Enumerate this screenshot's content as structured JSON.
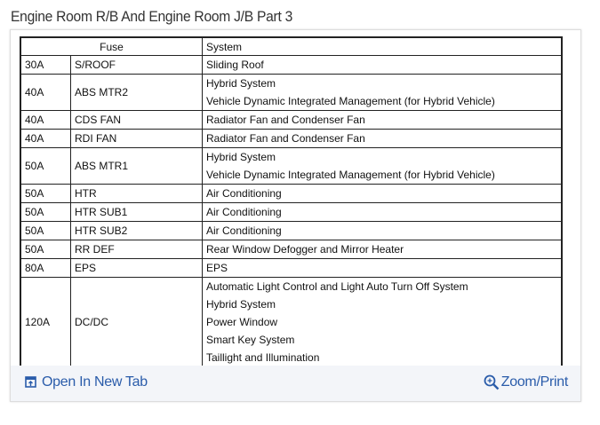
{
  "title": "Engine Room R/B And Engine Room J/B Part 3",
  "table": {
    "headers": {
      "fuse": "Fuse",
      "system": "System"
    },
    "rows": [
      {
        "amp": "30A",
        "name": "S/ROOF",
        "systems": [
          "Sliding Roof"
        ]
      },
      {
        "amp": "40A",
        "name": "ABS MTR2",
        "systems": [
          "Hybrid System",
          "Vehicle Dynamic Integrated Management (for Hybrid Vehicle)"
        ]
      },
      {
        "amp": "40A",
        "name": "CDS FAN",
        "systems": [
          "Radiator Fan and Condenser Fan"
        ]
      },
      {
        "amp": "40A",
        "name": "RDI FAN",
        "systems": [
          "Radiator Fan and Condenser Fan"
        ]
      },
      {
        "amp": "50A",
        "name": "ABS MTR1",
        "systems": [
          "Hybrid System",
          "Vehicle Dynamic Integrated Management (for Hybrid Vehicle)"
        ]
      },
      {
        "amp": "50A",
        "name": "HTR",
        "systems": [
          "Air Conditioning"
        ]
      },
      {
        "amp": "50A",
        "name": "HTR SUB1",
        "systems": [
          "Air Conditioning"
        ]
      },
      {
        "amp": "50A",
        "name": "HTR SUB2",
        "systems": [
          "Air Conditioning"
        ]
      },
      {
        "amp": "50A",
        "name": "RR DEF",
        "systems": [
          "Rear Window Defogger and Mirror Heater"
        ]
      },
      {
        "amp": "80A",
        "name": "EPS",
        "systems": [
          "EPS"
        ]
      },
      {
        "amp": "120A",
        "name": "DC/DC",
        "systems": [
          "Automatic Light Control and Light Auto Turn Off System",
          "Hybrid System",
          "Power Window",
          "Smart Key System",
          "Taillight and Illumination"
        ]
      }
    ]
  },
  "footer": {
    "open_tab": "Open In New Tab",
    "zoom_print": "Zoom/Print",
    "open_icon": "open-new-tab-icon",
    "zoom_icon": "zoom-in-icon",
    "link_color": "#2a5caa"
  }
}
